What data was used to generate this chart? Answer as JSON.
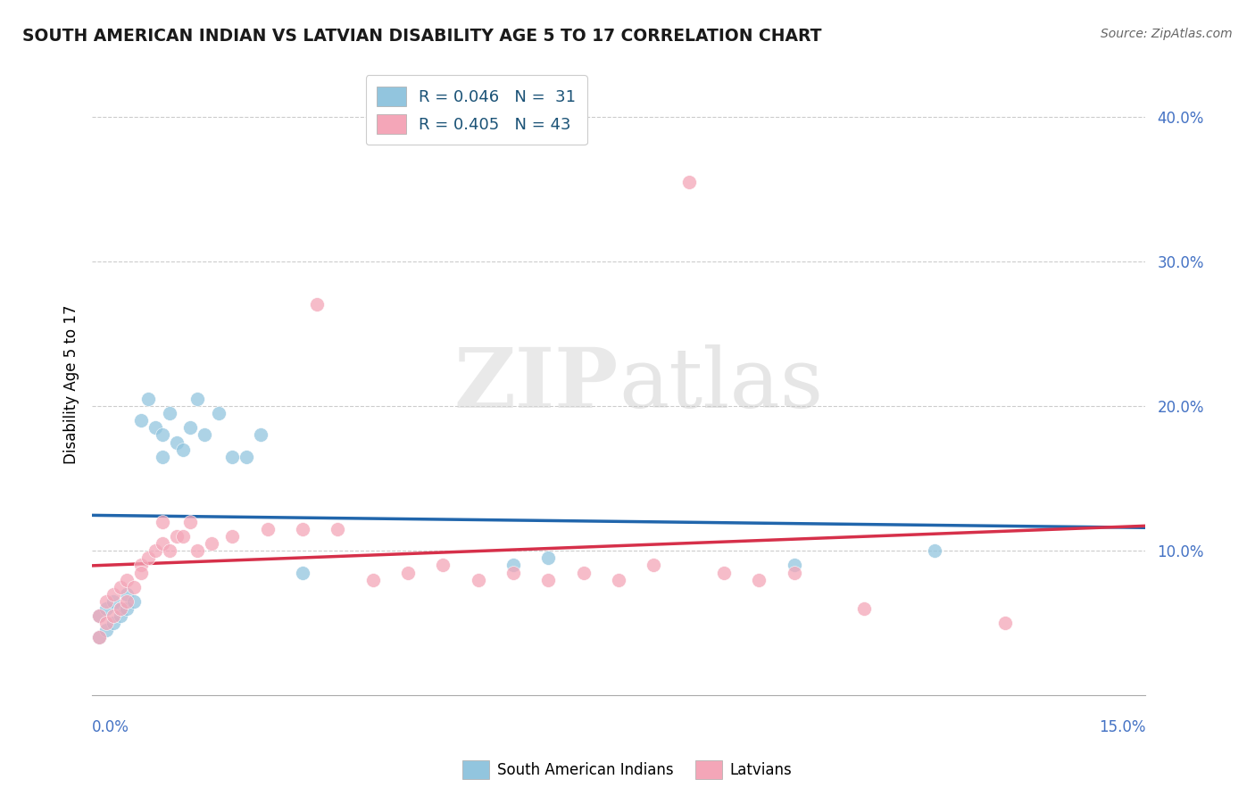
{
  "title": "SOUTH AMERICAN INDIAN VS LATVIAN DISABILITY AGE 5 TO 17 CORRELATION CHART",
  "source": "Source: ZipAtlas.com",
  "ylabel": "Disability Age 5 to 17",
  "xlim": [
    0.0,
    0.15
  ],
  "ylim": [
    0.0,
    0.43
  ],
  "blue_color": "#92c5de",
  "pink_color": "#f4a6b8",
  "trend_blue": "#2166ac",
  "trend_pink": "#d6304a",
  "legend_label1": "R = 0.046   N =  31",
  "legend_label2": "R = 0.405   N = 43",
  "sai_x": [
    0.001,
    0.001,
    0.002,
    0.002,
    0.003,
    0.003,
    0.004,
    0.004,
    0.005,
    0.005,
    0.006,
    0.007,
    0.008,
    0.009,
    0.01,
    0.01,
    0.011,
    0.012,
    0.013,
    0.014,
    0.015,
    0.016,
    0.018,
    0.02,
    0.022,
    0.024,
    0.03,
    0.06,
    0.065,
    0.1,
    0.12
  ],
  "sai_y": [
    0.055,
    0.04,
    0.06,
    0.045,
    0.065,
    0.05,
    0.06,
    0.055,
    0.07,
    0.06,
    0.065,
    0.19,
    0.205,
    0.185,
    0.165,
    0.18,
    0.195,
    0.175,
    0.17,
    0.185,
    0.205,
    0.18,
    0.195,
    0.165,
    0.165,
    0.18,
    0.085,
    0.09,
    0.095,
    0.09,
    0.1
  ],
  "lat_x": [
    0.001,
    0.001,
    0.002,
    0.002,
    0.003,
    0.003,
    0.004,
    0.004,
    0.005,
    0.005,
    0.006,
    0.007,
    0.007,
    0.008,
    0.009,
    0.01,
    0.01,
    0.011,
    0.012,
    0.013,
    0.014,
    0.015,
    0.017,
    0.02,
    0.025,
    0.03,
    0.032,
    0.035,
    0.04,
    0.045,
    0.05,
    0.055,
    0.06,
    0.065,
    0.07,
    0.075,
    0.08,
    0.085,
    0.09,
    0.095,
    0.1,
    0.11,
    0.13
  ],
  "lat_y": [
    0.04,
    0.055,
    0.05,
    0.065,
    0.055,
    0.07,
    0.06,
    0.075,
    0.065,
    0.08,
    0.075,
    0.09,
    0.085,
    0.095,
    0.1,
    0.105,
    0.12,
    0.1,
    0.11,
    0.11,
    0.12,
    0.1,
    0.105,
    0.11,
    0.115,
    0.115,
    0.27,
    0.115,
    0.08,
    0.085,
    0.09,
    0.08,
    0.085,
    0.08,
    0.085,
    0.08,
    0.09,
    0.355,
    0.085,
    0.08,
    0.085,
    0.06,
    0.05
  ]
}
